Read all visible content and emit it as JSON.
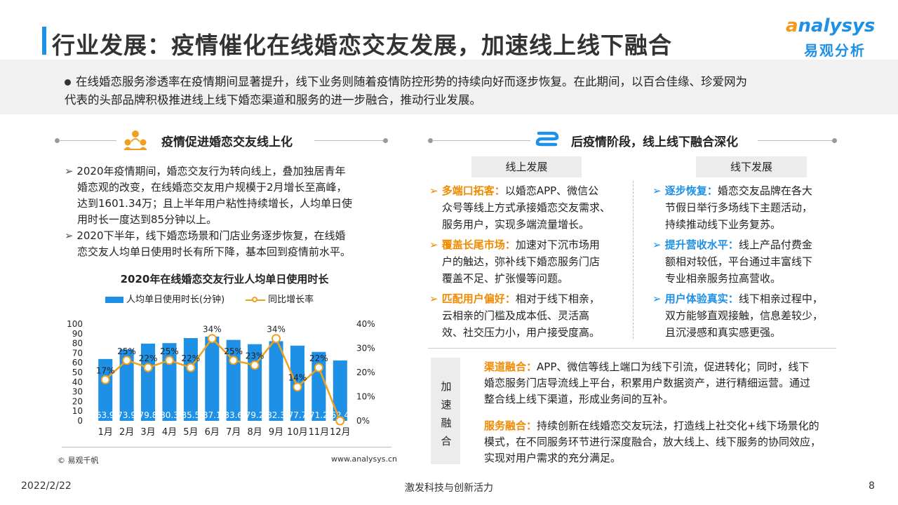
{
  "header": {
    "title": "行业发展：疫情催化在线婚恋交友发展，加速线上线下融合",
    "logo_en_o": "a",
    "logo_en_rest": "nalysys",
    "logo_cn": "易观分析"
  },
  "intro": {
    "line1": "在线婚恋服务渗透率在疫情期间显著提升，线下业务则随着疫情防控形势的持续向好而逐步恢复。在此期间，以百合佳缘、珍爱网为",
    "line2": "代表的头部品牌积极推进线上线下婚恋渠道和服务的进一步融合，推动行业发展。"
  },
  "left": {
    "section_title": "疫情促进婚恋交友线上化",
    "bullets": [
      [
        "2020年疫情期间，婚恋交友行为转向线上，叠加独居青年",
        "婚恋观的改变，在线婚恋交友用户规模于2月增长至高峰，",
        "达到1601.34万；且上半年用户粘性持续增长，人均单日使",
        "用时长一度达到85分钟以上。"
      ],
      [
        "2020下半年，线下婚恋场景和门店业务逐步恢复，在线婚",
        "恋交友人均单日使用时长有所下降，基本回到疫情前水平。"
      ]
    ],
    "copyright": "© 易观千帆",
    "source": "www.analysys.cn"
  },
  "chart_data": {
    "type": "bar",
    "title": "2020年在线婚恋交友行业人均单日使用时长",
    "categories": [
      "1月",
      "2月",
      "3月",
      "4月",
      "5月",
      "6月",
      "7月",
      "8月",
      "9月",
      "10月",
      "11月",
      "12月"
    ],
    "series": [
      {
        "name": "人均单日使用时长(分钟)",
        "type": "bar",
        "axis": "left",
        "values": [
          63.9,
          73.9,
          79.8,
          80.3,
          85.5,
          87.1,
          83.6,
          79.2,
          82.3,
          77.7,
          71.2,
          62.4
        ]
      },
      {
        "name": "同比增长率",
        "type": "line",
        "axis": "right",
        "values": [
          17,
          25,
          22,
          25,
          22,
          34,
          25,
          23,
          34,
          14,
          22,
          0
        ],
        "labels": [
          "17%",
          "25%",
          "22%",
          "25%",
          "22%",
          "34%",
          "25%",
          "23%",
          "34%",
          "14%",
          "22%",
          ""
        ]
      }
    ],
    "y_left_ticks": [
      "100",
      "90",
      "80",
      "70",
      "60",
      "50",
      "40",
      "30",
      "20",
      "10",
      "0"
    ],
    "y_right_ticks": [
      "40%",
      "30%",
      "20%",
      "10%",
      "0%"
    ],
    "ylim_left": [
      0,
      100
    ],
    "ylim_right": [
      0,
      40
    ],
    "colors": {
      "bar": "#1e90e6",
      "line": "#f0a020"
    }
  },
  "right": {
    "section_title": "后疫情阶段，线上线下融合深化",
    "tab_online": "线上发展",
    "tab_offline": "线下发展",
    "online_items": [
      {
        "key": "多端口拓客：",
        "lines": [
          "以婚恋APP、微信公",
          "众号等线上方式承接婚恋交友需求、",
          "服务用户，实现多端流量增长。"
        ]
      },
      {
        "key": "覆盖长尾市场：",
        "lines": [
          "加速对下沉市场用",
          "户的触达，弥补线下婚恋服务门店",
          "覆盖不足、扩张慢等问题。"
        ]
      },
      {
        "key": "匹配用户偏好：",
        "lines": [
          "相对于线下相亲，",
          "云相亲的门槛及成本低、灵活高",
          "效、社交压力小，用户接受度高。"
        ]
      }
    ],
    "offline_items": [
      {
        "key": "逐步恢复：",
        "lines": [
          "婚恋交友品牌在各大",
          "节假日举行多场线下主题活动，",
          "持续推动线下业务复苏。"
        ]
      },
      {
        "key": "提升营收水平：",
        "lines": [
          "线上产品付费金",
          "额相对较低，平台通过丰富线下",
          "专业相亲服务拉高营收。"
        ]
      },
      {
        "key": "用户体验真实：",
        "lines": [
          "线下相亲过程中，",
          "双方能够直观接触，信息差较少，",
          "且沉浸感和真实感更强。"
        ]
      }
    ],
    "accel_label": "加速融合",
    "accel_items": [
      {
        "key": "渠道融合：",
        "lines": [
          "APP、微信等线上端口为线下引流，促进转化；同时，线下",
          "婚恋服务门店导流线上平台，积累用户数据资产，进行精细运营。通过",
          "整合线上线下渠道，形成业务间的互补。"
        ]
      },
      {
        "key": "服务融合：",
        "lines": [
          "持续创新在线婚恋交友玩法，打造线上社交化+线下场景化的",
          "模式，在不同服务环节进行深度融合，放大线上、线下服务的协同效应，",
          "实现对用户需求的充分满足。"
        ]
      }
    ]
  },
  "footer": {
    "date": "2022/2/22",
    "slogan": "激发科技与创新活力",
    "page": "8"
  }
}
